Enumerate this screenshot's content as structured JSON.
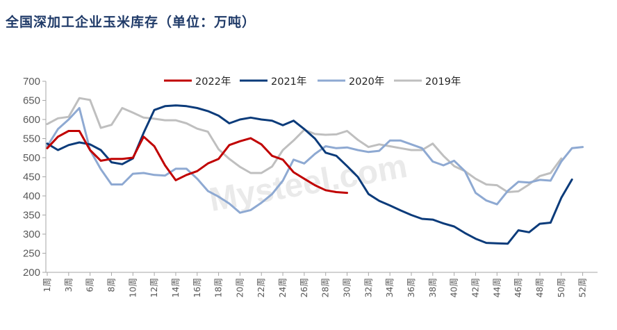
{
  "title": "全国深加工企业玉米库存（单位：万吨）",
  "watermark": "Mysteel.com",
  "chart_data": {
    "type": "line",
    "title": "全国深加工企业玉米库存（单位：万吨）",
    "ylim": [
      200,
      700
    ],
    "yticks": [
      200,
      250,
      300,
      350,
      400,
      450,
      500,
      550,
      600,
      650,
      700
    ],
    "xlim": [
      1,
      52
    ],
    "xtick_labels": [
      "1周",
      "3周",
      "6周",
      "8周",
      "10周",
      "12周",
      "14周",
      "16周",
      "18周",
      "20周",
      "22周",
      "24周",
      "26周",
      "28周",
      "30周",
      "32周",
      "34周",
      "36周",
      "38周",
      "40周",
      "42周",
      "44周",
      "46周",
      "48周",
      "50周",
      "52周"
    ],
    "xtick_positions": [
      1,
      3,
      5,
      7,
      9,
      11,
      13,
      15,
      17,
      19,
      21,
      23,
      25,
      27,
      29,
      31,
      33,
      35,
      37,
      39,
      41,
      43,
      45,
      47,
      49,
      51
    ],
    "legend_position": "top",
    "grid": false,
    "series": [
      {
        "name": "2022年",
        "color": "#c00000",
        "x": [
          1,
          2,
          3,
          4,
          5,
          6,
          7,
          8,
          9,
          10,
          11,
          12,
          13,
          14,
          15,
          16,
          17,
          18,
          19,
          20,
          21,
          22,
          23,
          24,
          25,
          26,
          27,
          28,
          29
        ],
        "values": [
          525,
          555,
          570,
          570,
          520,
          492,
          497,
          497,
          500,
          555,
          530,
          480,
          441,
          455,
          465,
          485,
          497,
          533,
          543,
          551,
          535,
          505,
          495,
          462,
          445,
          428,
          415,
          410,
          408
        ]
      },
      {
        "name": "2021年",
        "color": "#0b3b7a",
        "x": [
          1,
          2,
          3,
          4,
          5,
          6,
          7,
          8,
          9,
          10,
          11,
          12,
          13,
          14,
          15,
          16,
          17,
          18,
          19,
          20,
          21,
          22,
          23,
          24,
          25,
          26,
          27,
          28,
          29,
          30,
          31,
          32,
          33,
          34,
          35,
          36,
          37,
          38,
          39,
          40,
          41,
          42,
          43,
          44,
          45,
          46,
          47,
          48,
          49,
          50
        ],
        "values": [
          537,
          520,
          533,
          540,
          535,
          520,
          488,
          483,
          498,
          565,
          625,
          635,
          637,
          635,
          630,
          622,
          610,
          590,
          600,
          605,
          600,
          597,
          585,
          597,
          575,
          550,
          513,
          505,
          478,
          450,
          405,
          387,
          375,
          362,
          350,
          340,
          338,
          328,
          320,
          303,
          288,
          277,
          276,
          275,
          310,
          305,
          327,
          330,
          395,
          443
        ]
      },
      {
        "name": "2020年",
        "color": "#8ea9d2",
        "x": [
          1,
          2,
          3,
          4,
          5,
          6,
          7,
          8,
          9,
          10,
          11,
          12,
          13,
          14,
          15,
          16,
          17,
          18,
          19,
          20,
          21,
          22,
          23,
          24,
          25,
          26,
          27,
          28,
          29,
          30,
          31,
          32,
          33,
          34,
          35,
          36,
          37,
          38,
          39,
          40,
          41,
          42,
          43,
          44,
          45,
          46,
          47,
          48,
          49,
          50,
          51
        ],
        "values": [
          530,
          575,
          600,
          630,
          520,
          470,
          430,
          430,
          458,
          460,
          455,
          453,
          471,
          471,
          445,
          413,
          398,
          380,
          356,
          363,
          382,
          405,
          440,
          495,
          485,
          510,
          530,
          525,
          527,
          520,
          515,
          518,
          545,
          545,
          535,
          525,
          490,
          480,
          492,
          465,
          408,
          388,
          378,
          413,
          437,
          435,
          442,
          440,
          490,
          525,
          528
        ]
      },
      {
        "name": "2019年",
        "color": "#bfbfbf",
        "x": [
          1,
          2,
          3,
          4,
          5,
          6,
          7,
          8,
          9,
          10,
          11,
          12,
          13,
          14,
          15,
          16,
          17,
          18,
          19,
          20,
          21,
          22,
          23,
          24,
          25,
          26,
          27,
          28,
          29,
          30,
          31,
          32,
          33,
          34,
          35,
          36,
          37,
          38,
          39,
          40,
          41,
          42,
          43,
          44,
          45,
          46,
          47,
          48,
          49
        ],
        "values": [
          588,
          603,
          607,
          656,
          651,
          578,
          586,
          630,
          618,
          605,
          602,
          598,
          598,
          590,
          576,
          568,
          522,
          497,
          476,
          460,
          460,
          477,
          520,
          545,
          573,
          562,
          560,
          561,
          570,
          547,
          528,
          535,
          530,
          525,
          520,
          520,
          537,
          505,
          478,
          465,
          445,
          430,
          428,
          410,
          412,
          430,
          452,
          460,
          498
        ]
      }
    ]
  }
}
